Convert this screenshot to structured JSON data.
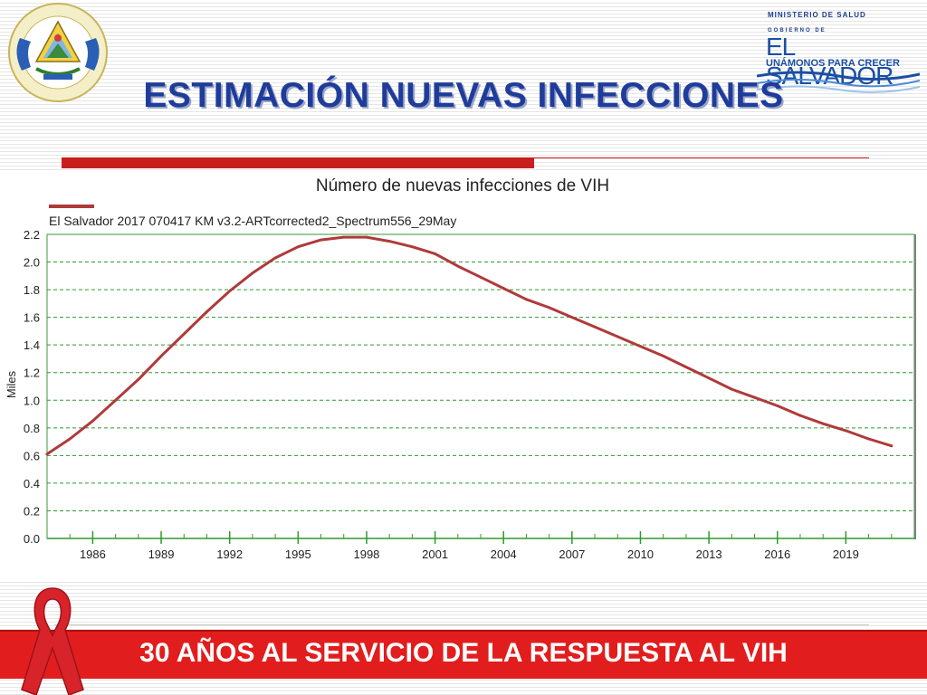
{
  "header": {
    "seal_text": "REPUBLICA DE EL SALVADOR EN LA AMERICA CENTRAL",
    "gov_ministry": "MINISTERIO DE SALUD",
    "gov_prefix": "GOBIERNO DE",
    "gov_country": "EL SALVADOR",
    "gov_slogan": "UNÁMONOS PARA CRECER",
    "title": "ESTIMACIÓN NUEVAS INFECCIONES"
  },
  "chart_data": {
    "type": "line",
    "title": "Número de nuevas infecciones de VIH",
    "xlabel": "",
    "ylabel": "Miles",
    "ylim": [
      0,
      2.2
    ],
    "xlim": [
      1984,
      2022
    ],
    "grid": true,
    "legend_position": "top-left",
    "x_ticks": [
      1986,
      1989,
      1992,
      1995,
      1998,
      2001,
      2004,
      2007,
      2010,
      2013,
      2016,
      2019
    ],
    "y_ticks": [
      "0.0",
      "0.2",
      "0.4",
      "0.6",
      "0.8",
      "1.0",
      "1.2",
      "1.4",
      "1.6",
      "1.8",
      "2.0",
      "2.2"
    ],
    "series": [
      {
        "name": "El Salvador 2017 070417 KM v3.2-ARTcorrected2_Spectrum556_29May",
        "color": "#b03a3a",
        "x": [
          1984,
          1985,
          1986,
          1987,
          1988,
          1989,
          1990,
          1991,
          1992,
          1993,
          1994,
          1995,
          1996,
          1997,
          1998,
          1999,
          2000,
          2001,
          2002,
          2003,
          2004,
          2005,
          2006,
          2007,
          2008,
          2009,
          2010,
          2011,
          2012,
          2013,
          2014,
          2015,
          2016,
          2017,
          2018,
          2019,
          2020,
          2021
        ],
        "values": [
          0.61,
          0.72,
          0.85,
          1.0,
          1.15,
          1.32,
          1.48,
          1.64,
          1.79,
          1.92,
          2.03,
          2.11,
          2.16,
          2.18,
          2.18,
          2.15,
          2.11,
          2.06,
          1.97,
          1.89,
          1.81,
          1.73,
          1.67,
          1.6,
          1.53,
          1.46,
          1.39,
          1.32,
          1.24,
          1.16,
          1.08,
          1.02,
          0.96,
          0.89,
          0.83,
          0.78,
          0.72,
          0.67
        ]
      }
    ]
  },
  "footer": {
    "banner_text": "30 AÑOS AL SERVICIO DE LA RESPUESTA AL VIH"
  }
}
